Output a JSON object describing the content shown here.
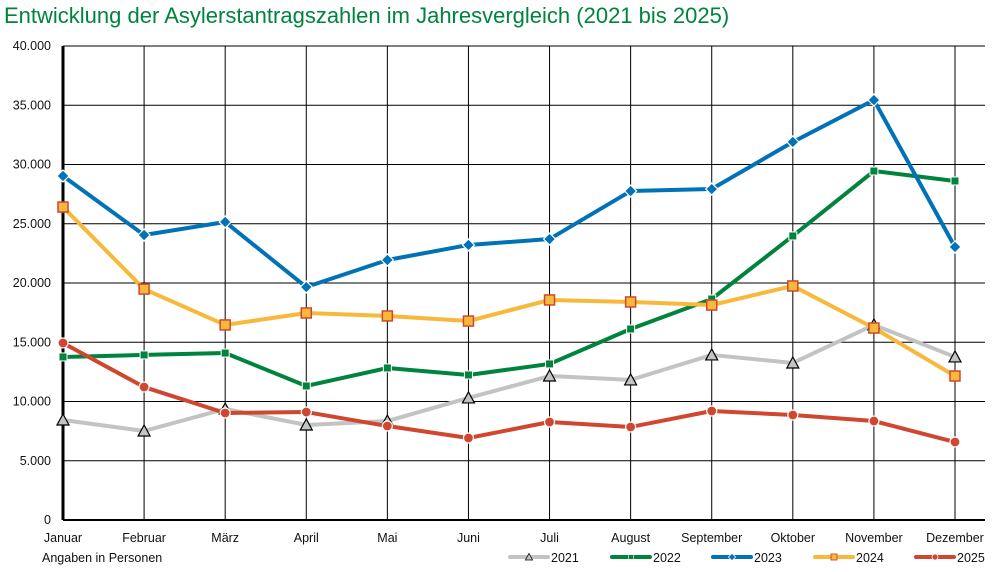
{
  "chart_data": {
    "type": "line",
    "title": "Entwicklung der Asylerstantragszahlen im Jahresvergleich (2021 bis 2025)",
    "note": "Angaben in Personen",
    "xlabel": "",
    "ylabel": "",
    "ylim": [
      0,
      40000
    ],
    "yticks": [
      0,
      5000,
      10000,
      15000,
      20000,
      25000,
      30000,
      35000,
      40000
    ],
    "ytick_labels": [
      "0",
      "5.000",
      "10.000",
      "15.000",
      "20.000",
      "25.000",
      "30.000",
      "35.000",
      "40.000"
    ],
    "categories": [
      "Januar",
      "Februar",
      "März",
      "April",
      "Mai",
      "Juni",
      "Juli",
      "August",
      "September",
      "Oktober",
      "November",
      "Dezember"
    ],
    "grid": true,
    "legend_position": "bottom-right",
    "series": [
      {
        "name": "2021",
        "color": "#c2c4c4",
        "marker": "triangle",
        "values": [
          8440,
          7510,
          9370,
          8020,
          8350,
          10300,
          12150,
          11820,
          13930,
          13250,
          16460,
          13760
        ]
      },
      {
        "name": "2022",
        "color": "#00843d",
        "marker": "square",
        "values": [
          13760,
          13930,
          14090,
          11310,
          12830,
          12240,
          13170,
          16120,
          18650,
          23970,
          29450,
          28610
        ]
      },
      {
        "name": "2023",
        "color": "#0072b8",
        "marker": "diamond",
        "values": [
          29030,
          24050,
          25150,
          19660,
          21940,
          23210,
          23710,
          27760,
          27930,
          31900,
          35440,
          23040
        ]
      },
      {
        "name": "2024",
        "color": "#f7b93b",
        "marker": "square-outlined",
        "values": [
          26410,
          19490,
          16460,
          17470,
          17220,
          16790,
          18570,
          18400,
          18140,
          19750,
          16200,
          12150
        ]
      },
      {
        "name": "2025",
        "color": "#d0472f",
        "marker": "circle",
        "values": [
          14940,
          11220,
          9030,
          9110,
          7930,
          6920,
          8270,
          7850,
          9200,
          8860,
          8350,
          6580
        ]
      }
    ]
  }
}
